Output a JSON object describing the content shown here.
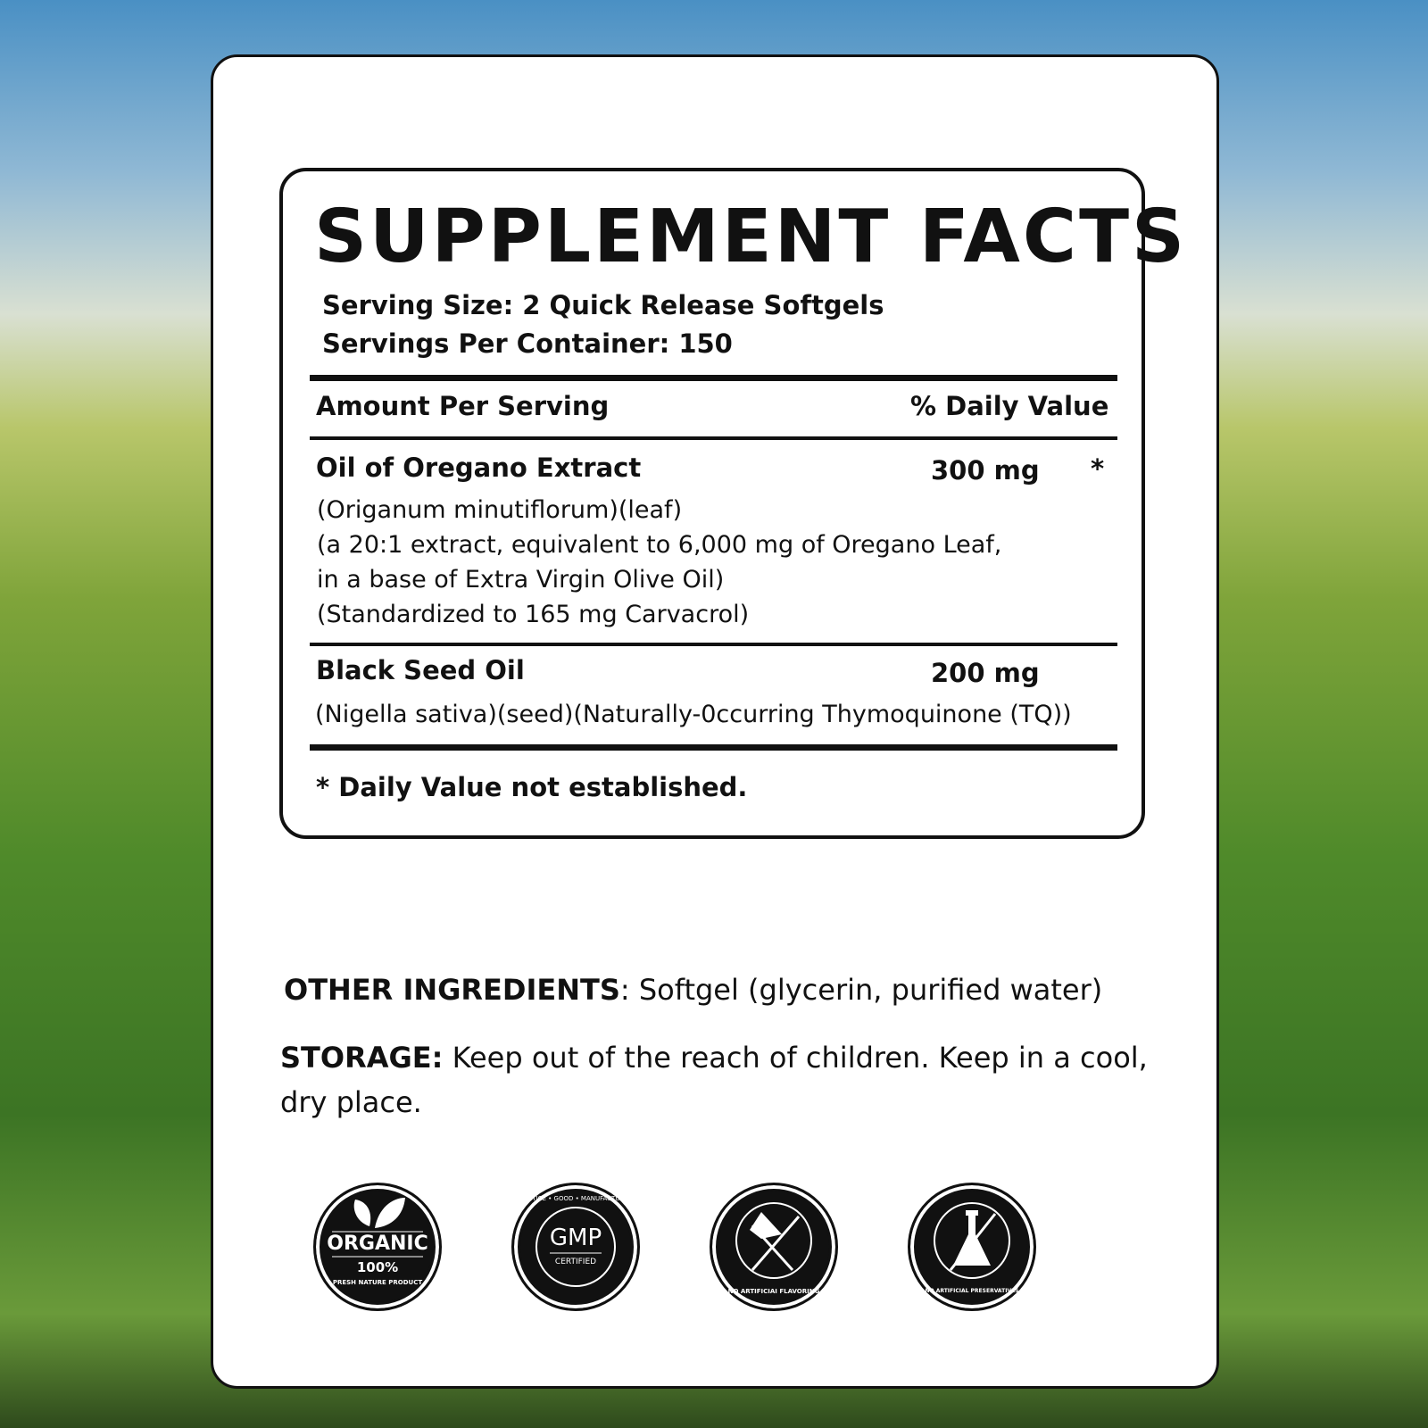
{
  "facts": {
    "title": "SUPPLEMENT FACTS",
    "serving_size": "Serving Size: 2 Quick Release Softgels",
    "servings_per_container": "Servings Per Container: 150",
    "amount_header": "Amount Per Serving",
    "dv_header": "% Daily Value",
    "ingredients": [
      {
        "name": "Oil of Oregano Extract",
        "amount": "300 mg",
        "dv": "*",
        "details": [
          "(Origanum minutiflorum)(leaf)",
          "(a 20:1 extract, equivalent to 6,000 mg of Oregano Leaf,",
          "in a base of Extra Virgin Olive Oil)",
          "(Standardized to 165 mg Carvacrol)"
        ]
      },
      {
        "name": "Black Seed Oil",
        "amount": "200 mg",
        "details": [
          "(Nigella sativa)(seed)(Naturally-0ccurring Thymoquinone (TQ))"
        ]
      }
    ],
    "footnote": "* Daily Value not established."
  },
  "other": {
    "label": "OTHER INGREDIENTS",
    "text": ": Softgel (glycerin, purified water)"
  },
  "storage": {
    "label": "STORAGE:",
    "text": " Keep out of the reach of children. Keep in a cool,",
    "text2": "dry place."
  },
  "badges": [
    {
      "icon": "leaf-icon",
      "title": "ORGANIC",
      "sub": "100%",
      "ring": "PRESH NATURE PRODUCT"
    },
    {
      "icon": "gmp-icon",
      "title": "GMP",
      "sub": "CERTIFIED",
      "ring": "PRACTICE • GOOD • MANUFACTURING"
    },
    {
      "icon": "no-flavoring-icon",
      "ring": "NO ARTIFICIAI FLAVORING"
    },
    {
      "icon": "no-preservatives-icon",
      "ring": "NO ARTIFICIAL PRESERVATIVES"
    }
  ]
}
